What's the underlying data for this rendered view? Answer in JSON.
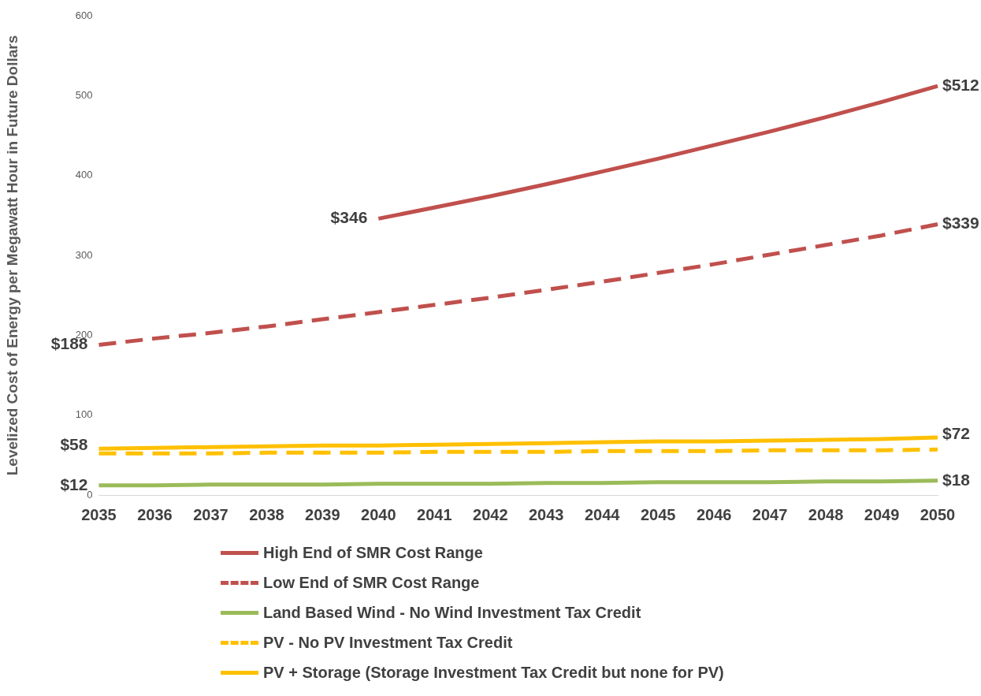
{
  "chart_data": {
    "type": "line",
    "ylabel": "Levelized Cost of Energy per Megawatt Hour in Future Dollars",
    "categories": [
      "2035",
      "2036",
      "2037",
      "2038",
      "2039",
      "2040",
      "2041",
      "2042",
      "2043",
      "2044",
      "2045",
      "2046",
      "2047",
      "2048",
      "2049",
      "2050"
    ],
    "ylim": [
      0,
      600
    ],
    "yticks": [
      0,
      100,
      200,
      300,
      400,
      500,
      600
    ],
    "grid": false,
    "legend": "bottom",
    "marker": "none",
    "series": [
      {
        "name": "High End of SMR Cost Range",
        "color": "#c0504d",
        "line_style": "solid",
        "values": [
          null,
          null,
          null,
          null,
          null,
          346,
          360,
          374,
          389,
          405,
          421,
          438,
          455,
          473,
          492,
          512
        ],
        "value_labels": [
          null,
          null,
          null,
          null,
          null,
          "$346",
          null,
          null,
          null,
          null,
          null,
          null,
          null,
          null,
          null,
          "$512"
        ]
      },
      {
        "name": "Low End of SMR Cost Range",
        "color": "#c0504d",
        "line_style": "dashed",
        "values": [
          188,
          196,
          203,
          211,
          220,
          229,
          238,
          247,
          257,
          267,
          278,
          289,
          301,
          313,
          325,
          339
        ],
        "value_labels": [
          "$188",
          null,
          null,
          null,
          null,
          null,
          null,
          null,
          null,
          null,
          null,
          null,
          null,
          null,
          null,
          "$339"
        ]
      },
      {
        "name": "Land Based Wind - No Wind Investment Tax Credit",
        "color": "#9bbb59",
        "line_style": "solid",
        "values": [
          12,
          12,
          13,
          13,
          13,
          14,
          14,
          14,
          15,
          15,
          16,
          16,
          16,
          17,
          17,
          18
        ],
        "value_labels": [
          "$12",
          null,
          null,
          null,
          null,
          null,
          null,
          null,
          null,
          null,
          null,
          null,
          null,
          null,
          null,
          "$18"
        ]
      },
      {
        "name": "PV - No PV Investment Tax Credit",
        "color": "#ffc000",
        "line_style": "dashed",
        "values": [
          52,
          52,
          52,
          53,
          53,
          53,
          54,
          54,
          54,
          55,
          55,
          55,
          56,
          56,
          56,
          57
        ]
      },
      {
        "name": "PV + Storage (Storage Investment Tax Credit but none for PV)",
        "color": "#ffc000",
        "line_style": "solid",
        "values": [
          58,
          59,
          60,
          61,
          62,
          62,
          63,
          64,
          65,
          66,
          67,
          67,
          68,
          69,
          70,
          72
        ],
        "value_labels": [
          "$58",
          null,
          null,
          null,
          null,
          null,
          null,
          null,
          null,
          null,
          null,
          null,
          null,
          null,
          null,
          "$72"
        ]
      }
    ]
  }
}
